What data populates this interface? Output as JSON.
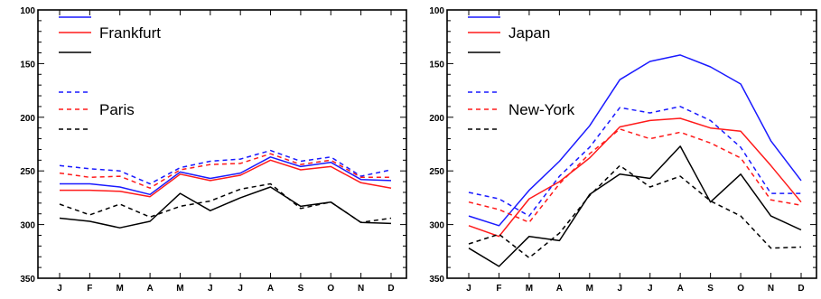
{
  "colors": {
    "blue": "#1a1aff",
    "red": "#ff1a1a",
    "black": "#000000"
  },
  "chart_data": [
    {
      "type": "line",
      "y_inverted": true,
      "ylim": [
        350,
        100
      ],
      "yticks": [
        100,
        150,
        200,
        250,
        300,
        350
      ],
      "categories": [
        "J",
        "F",
        "M",
        "A",
        "M",
        "J",
        "J",
        "A",
        "S",
        "O",
        "N",
        "D"
      ],
      "legend": [
        {
          "label": "",
          "color": "blue",
          "dash": false
        },
        {
          "label": "Frankfurt",
          "color": "red",
          "dash": false
        },
        {
          "label": "",
          "color": "black",
          "dash": false
        },
        {
          "label": "",
          "color": "blue",
          "dash": true
        },
        {
          "label": "Paris",
          "color": "red",
          "dash": true
        },
        {
          "label": "",
          "color": "black",
          "dash": true
        }
      ],
      "series": [
        {
          "color": "blue",
          "dash": false,
          "values": [
            262,
            262,
            265,
            272,
            251,
            257,
            252,
            237,
            246,
            242,
            258,
            259
          ]
        },
        {
          "color": "red",
          "dash": false,
          "values": [
            268,
            268,
            269,
            274,
            253,
            259,
            254,
            240,
            249,
            246,
            261,
            266
          ]
        },
        {
          "color": "black",
          "dash": false,
          "values": [
            294,
            297,
            303,
            297,
            271,
            287,
            275,
            265,
            283,
            279,
            298,
            299
          ]
        },
        {
          "color": "blue",
          "dash": true,
          "values": [
            245,
            248,
            250,
            262,
            247,
            241,
            239,
            231,
            241,
            237,
            255,
            249
          ]
        },
        {
          "color": "red",
          "dash": true,
          "values": [
            252,
            256,
            255,
            266,
            249,
            244,
            243,
            234,
            244,
            240,
            256,
            256
          ]
        },
        {
          "color": "black",
          "dash": true,
          "values": [
            281,
            291,
            281,
            293,
            283,
            278,
            267,
            262,
            285,
            279,
            298,
            294
          ]
        }
      ]
    },
    {
      "type": "line",
      "y_inverted": true,
      "ylim": [
        350,
        100
      ],
      "yticks": [
        100,
        150,
        200,
        250,
        300,
        350
      ],
      "categories": [
        "J",
        "F",
        "M",
        "A",
        "M",
        "J",
        "J",
        "A",
        "S",
        "O",
        "N",
        "D"
      ],
      "legend": [
        {
          "label": "",
          "color": "blue",
          "dash": false
        },
        {
          "label": "Japan",
          "color": "red",
          "dash": false
        },
        {
          "label": "",
          "color": "black",
          "dash": false
        },
        {
          "label": "",
          "color": "blue",
          "dash": true
        },
        {
          "label": "New-York",
          "color": "red",
          "dash": true
        },
        {
          "label": "",
          "color": "black",
          "dash": true
        }
      ],
      "series": [
        {
          "color": "blue",
          "dash": false,
          "values": [
            292,
            301,
            268,
            241,
            208,
            165,
            148,
            142,
            153,
            169,
            222,
            259
          ]
        },
        {
          "color": "red",
          "dash": false,
          "values": [
            301,
            311,
            276,
            260,
            238,
            209,
            203,
            201,
            210,
            213,
            245,
            279
          ]
        },
        {
          "color": "black",
          "dash": false,
          "values": [
            322,
            339,
            311,
            315,
            272,
            253,
            257,
            227,
            279,
            253,
            292,
            305
          ]
        },
        {
          "color": "blue",
          "dash": true,
          "values": [
            270,
            276,
            292,
            255,
            228,
            191,
            196,
            190,
            203,
            228,
            271,
            271
          ]
        },
        {
          "color": "red",
          "dash": true,
          "values": [
            279,
            286,
            298,
            262,
            234,
            211,
            220,
            214,
            224,
            238,
            277,
            282
          ]
        },
        {
          "color": "black",
          "dash": true,
          "values": [
            318,
            309,
            331,
            308,
            273,
            245,
            265,
            255,
            278,
            292,
            322,
            321
          ]
        }
      ]
    }
  ]
}
